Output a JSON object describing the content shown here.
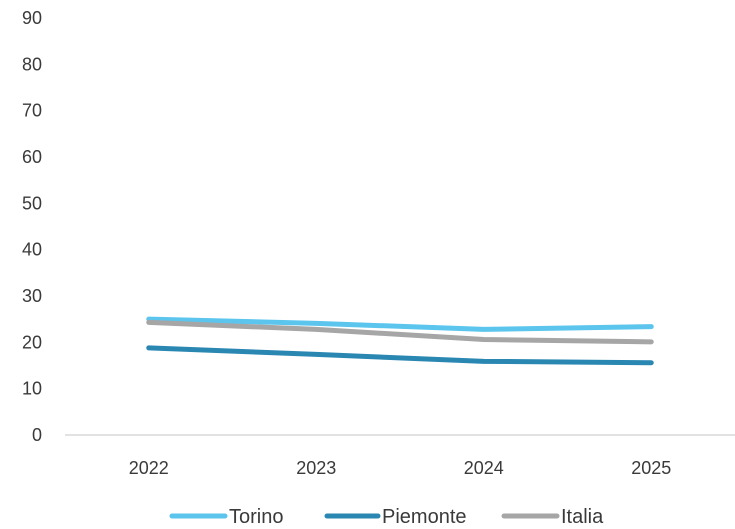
{
  "chart_data": {
    "type": "line",
    "x": [
      "2022",
      "2023",
      "2024",
      "2025"
    ],
    "ylim": [
      0,
      90
    ],
    "yticks": [
      0,
      10,
      20,
      30,
      40,
      50,
      60,
      70,
      80,
      90
    ],
    "grid": false,
    "legend": "bottom",
    "title": "",
    "xlabel": "",
    "ylabel": "",
    "series": [
      {
        "name": "Torino",
        "color": "#5BC5EE",
        "values": [
          25.0,
          24.1,
          22.8,
          23.4
        ]
      },
      {
        "name": "Piemonte",
        "color": "#2A87B2",
        "values": [
          18.8,
          17.4,
          15.9,
          15.6
        ]
      },
      {
        "name": "Italia",
        "color": "#A6A6A6",
        "values": [
          24.3,
          22.8,
          20.6,
          20.1
        ]
      }
    ]
  }
}
